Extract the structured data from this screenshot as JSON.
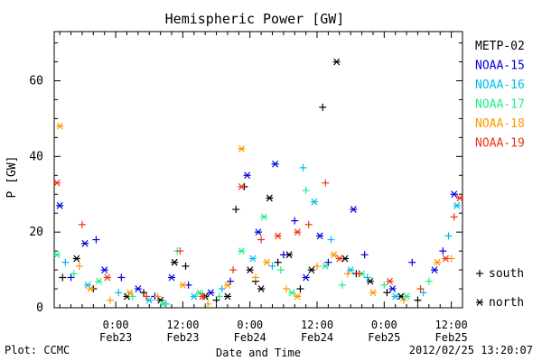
{
  "chart_data": {
    "type": "scatter",
    "title": "Hemispheric Power [GW]",
    "xlabel": "Date and Time",
    "ylabel": "P [GW]",
    "ylim": [
      0,
      73
    ],
    "y_ticks": [
      0,
      20,
      40,
      60
    ],
    "xlim": [
      "2012-02-22 13:00",
      "2012-02-25 14:00"
    ],
    "x_ticks": [
      {
        "time": "2012-02-23 00:00",
        "line1": "0:00",
        "line2": "Feb23"
      },
      {
        "time": "2012-02-23 12:00",
        "line1": "12:00",
        "line2": "Feb23"
      },
      {
        "time": "2012-02-24 00:00",
        "line1": "0:00",
        "line2": "Feb24"
      },
      {
        "time": "2012-02-24 12:00",
        "line1": "12:00",
        "line2": "Feb24"
      },
      {
        "time": "2012-02-25 00:00",
        "line1": "0:00",
        "line2": "Feb25"
      },
      {
        "time": "2012-02-25 12:00",
        "line1": "12:00",
        "line2": "Feb25"
      }
    ],
    "legend_position": "right",
    "marker_legend": [
      {
        "symbol": "+",
        "label": "south"
      },
      {
        "symbol": "*",
        "label": "north"
      }
    ],
    "series": [
      {
        "name": "METP-02",
        "color": "#000000",
        "points": [
          [
            "2012-02-22 14:30",
            8,
            "+"
          ],
          [
            "2012-02-22 17:00",
            13,
            "*"
          ],
          [
            "2012-02-22 20:00",
            5,
            "+"
          ],
          [
            "2012-02-23 02:00",
            3,
            "*"
          ],
          [
            "2012-02-23 05:00",
            4,
            "+"
          ],
          [
            "2012-02-23 08:00",
            2,
            "*"
          ],
          [
            "2012-02-23 10:30",
            12,
            "*"
          ],
          [
            "2012-02-23 12:30",
            11,
            "+"
          ],
          [
            "2012-02-23 16:00",
            3,
            "*"
          ],
          [
            "2012-02-23 18:00",
            2,
            "+"
          ],
          [
            "2012-02-23 20:00",
            3,
            "*"
          ],
          [
            "2012-02-23 21:30",
            26,
            "+"
          ],
          [
            "2012-02-23 23:00",
            32,
            "+"
          ],
          [
            "2012-02-24 00:00",
            10,
            "*"
          ],
          [
            "2012-02-24 01:00",
            7,
            "+"
          ],
          [
            "2012-02-24 02:00",
            5,
            "*"
          ],
          [
            "2012-02-24 03:30",
            29,
            "*"
          ],
          [
            "2012-02-24 05:00",
            12,
            "+"
          ],
          [
            "2012-02-24 07:00",
            14,
            "*"
          ],
          [
            "2012-02-24 09:00",
            5,
            "+"
          ],
          [
            "2012-02-24 11:00",
            10,
            "*"
          ],
          [
            "2012-02-24 13:00",
            53,
            "+"
          ],
          [
            "2012-02-24 15:30",
            65,
            "*"
          ],
          [
            "2012-02-24 17:00",
            13,
            "*"
          ],
          [
            "2012-02-24 19:00",
            9,
            "+"
          ],
          [
            "2012-02-24 21:30",
            7,
            "*"
          ],
          [
            "2012-02-25 00:30",
            4,
            "+"
          ],
          [
            "2012-02-25 03:00",
            3,
            "*"
          ],
          [
            "2012-02-25 06:00",
            2,
            "+"
          ]
        ]
      },
      {
        "name": "NOAA-15",
        "color": "#0000dd",
        "points": [
          [
            "2012-02-22 14:00",
            27,
            "*"
          ],
          [
            "2012-02-22 16:00",
            8,
            "+"
          ],
          [
            "2012-02-22 18:30",
            17,
            "*"
          ],
          [
            "2012-02-22 20:30",
            18,
            "+"
          ],
          [
            "2012-02-22 22:00",
            10,
            "*"
          ],
          [
            "2012-02-23 01:00",
            8,
            "+"
          ],
          [
            "2012-02-23 04:00",
            5,
            "*"
          ],
          [
            "2012-02-23 07:00",
            3,
            "+"
          ],
          [
            "2012-02-23 10:00",
            8,
            "*"
          ],
          [
            "2012-02-23 13:00",
            6,
            "+"
          ],
          [
            "2012-02-23 17:00",
            4,
            "*"
          ],
          [
            "2012-02-23 20:30",
            7,
            "+"
          ],
          [
            "2012-02-23 23:30",
            35,
            "*"
          ],
          [
            "2012-02-24 01:30",
            20,
            "*"
          ],
          [
            "2012-02-24 04:30",
            38,
            "*"
          ],
          [
            "2012-02-24 06:00",
            14,
            "+"
          ],
          [
            "2012-02-24 08:00",
            23,
            "+"
          ],
          [
            "2012-02-24 10:00",
            8,
            "*"
          ],
          [
            "2012-02-24 12:30",
            19,
            "*"
          ],
          [
            "2012-02-24 14:00",
            12,
            "+"
          ],
          [
            "2012-02-24 18:30",
            26,
            "*"
          ],
          [
            "2012-02-24 20:30",
            14,
            "+"
          ],
          [
            "2012-02-25 01:30",
            5,
            "*"
          ],
          [
            "2012-02-25 05:00",
            12,
            "+"
          ],
          [
            "2012-02-25 09:00",
            10,
            "*"
          ],
          [
            "2012-02-25 10:30",
            15,
            "+"
          ],
          [
            "2012-02-25 12:30",
            30,
            "*"
          ]
        ]
      },
      {
        "name": "NOAA-16",
        "color": "#00bbee",
        "points": [
          [
            "2012-02-22 15:00",
            12,
            "+"
          ],
          [
            "2012-02-22 19:00",
            6,
            "*"
          ],
          [
            "2012-02-23 00:30",
            4,
            "+"
          ],
          [
            "2012-02-23 06:00",
            2,
            "*"
          ],
          [
            "2012-02-23 09:00",
            1,
            "+"
          ],
          [
            "2012-02-23 14:00",
            3,
            "*"
          ],
          [
            "2012-02-23 19:00",
            5,
            "+"
          ],
          [
            "2012-02-24 00:30",
            13,
            "*"
          ],
          [
            "2012-02-24 04:00",
            11,
            "+"
          ],
          [
            "2012-02-24 09:30",
            37,
            "+"
          ],
          [
            "2012-02-24 11:30",
            28,
            "*"
          ],
          [
            "2012-02-24 14:30",
            18,
            "+"
          ],
          [
            "2012-02-24 18:00",
            10,
            "*"
          ],
          [
            "2012-02-24 21:00",
            8,
            "+"
          ],
          [
            "2012-02-25 02:00",
            3,
            "*"
          ],
          [
            "2012-02-25 07:00",
            4,
            "+"
          ],
          [
            "2012-02-25 11:30",
            19,
            "+"
          ],
          [
            "2012-02-25 13:00",
            27,
            "*"
          ]
        ]
      },
      {
        "name": "NOAA-17",
        "color": "#22ee88",
        "points": [
          [
            "2012-02-22 13:30",
            14,
            "*"
          ],
          [
            "2012-02-22 16:30",
            9,
            "+"
          ],
          [
            "2012-02-22 21:00",
            7,
            "*"
          ],
          [
            "2012-02-23 03:00",
            3,
            "+"
          ],
          [
            "2012-02-23 08:30",
            1,
            "*"
          ],
          [
            "2012-02-23 11:00",
            15,
            "+"
          ],
          [
            "2012-02-23 15:00",
            4,
            "*"
          ],
          [
            "2012-02-23 18:30",
            3,
            "+"
          ],
          [
            "2012-02-23 22:30",
            15,
            "*"
          ],
          [
            "2012-02-24 02:30",
            24,
            "*"
          ],
          [
            "2012-02-24 05:30",
            10,
            "+"
          ],
          [
            "2012-02-24 07:30",
            4,
            "*"
          ],
          [
            "2012-02-24 10:00",
            31,
            "+"
          ],
          [
            "2012-02-24 13:30",
            11,
            "*"
          ],
          [
            "2012-02-24 16:30",
            6,
            "+"
          ],
          [
            "2012-02-24 20:00",
            9,
            "*"
          ],
          [
            "2012-02-25 00:00",
            6,
            "+"
          ],
          [
            "2012-02-25 04:00",
            3,
            "*"
          ],
          [
            "2012-02-25 08:00",
            7,
            "+"
          ]
        ]
      },
      {
        "name": "NOAA-18",
        "color": "#ff9900",
        "points": [
          [
            "2012-02-22 14:00",
            48,
            "*"
          ],
          [
            "2012-02-22 17:30",
            11,
            "+"
          ],
          [
            "2012-02-22 19:30",
            5,
            "*"
          ],
          [
            "2012-02-22 23:00",
            2,
            "+"
          ],
          [
            "2012-02-23 02:30",
            4,
            "*"
          ],
          [
            "2012-02-23 07:30",
            3,
            "+"
          ],
          [
            "2012-02-23 12:00",
            6,
            "*"
          ],
          [
            "2012-02-23 16:30",
            1,
            "+"
          ],
          [
            "2012-02-23 20:00",
            6,
            "*"
          ],
          [
            "2012-02-23 22:30",
            42,
            "*"
          ],
          [
            "2012-02-24 01:00",
            8,
            "+"
          ],
          [
            "2012-02-24 03:00",
            12,
            "*"
          ],
          [
            "2012-02-24 06:30",
            5,
            "+"
          ],
          [
            "2012-02-24 08:30",
            3,
            "*"
          ],
          [
            "2012-02-24 12:00",
            11,
            "+"
          ],
          [
            "2012-02-24 15:00",
            14,
            "*"
          ],
          [
            "2012-02-24 17:30",
            9,
            "+"
          ],
          [
            "2012-02-24 22:00",
            4,
            "*"
          ],
          [
            "2012-02-25 03:30",
            2,
            "+"
          ],
          [
            "2012-02-25 09:30",
            12,
            "*"
          ],
          [
            "2012-02-25 12:00",
            13,
            "+"
          ]
        ]
      },
      {
        "name": "NOAA-19",
        "color": "#ee3311",
        "points": [
          [
            "2012-02-22 13:30",
            33,
            "*"
          ],
          [
            "2012-02-22 18:00",
            22,
            "+"
          ],
          [
            "2012-02-22 22:30",
            8,
            "*"
          ],
          [
            "2012-02-23 05:30",
            3,
            "+"
          ],
          [
            "2012-02-23 11:30",
            15,
            "+"
          ],
          [
            "2012-02-23 15:30",
            3,
            "*"
          ],
          [
            "2012-02-23 21:00",
            10,
            "+"
          ],
          [
            "2012-02-23 22:30",
            32,
            "*"
          ],
          [
            "2012-02-24 02:00",
            18,
            "+"
          ],
          [
            "2012-02-24 05:00",
            19,
            "*"
          ],
          [
            "2012-02-24 08:30",
            20,
            "*"
          ],
          [
            "2012-02-24 10:30",
            22,
            "+"
          ],
          [
            "2012-02-24 13:30",
            33,
            "+"
          ],
          [
            "2012-02-24 16:00",
            13,
            "*"
          ],
          [
            "2012-02-24 19:30",
            9,
            "+"
          ],
          [
            "2012-02-25 01:00",
            7,
            "*"
          ],
          [
            "2012-02-25 06:30",
            5,
            "+"
          ],
          [
            "2012-02-25 11:00",
            13,
            "*"
          ],
          [
            "2012-02-25 12:30",
            24,
            "+"
          ],
          [
            "2012-02-25 13:30",
            29,
            "*"
          ]
        ]
      }
    ]
  },
  "footer": {
    "left": "Plot: CCMC",
    "right": "2012/02/25 13:20:07"
  }
}
